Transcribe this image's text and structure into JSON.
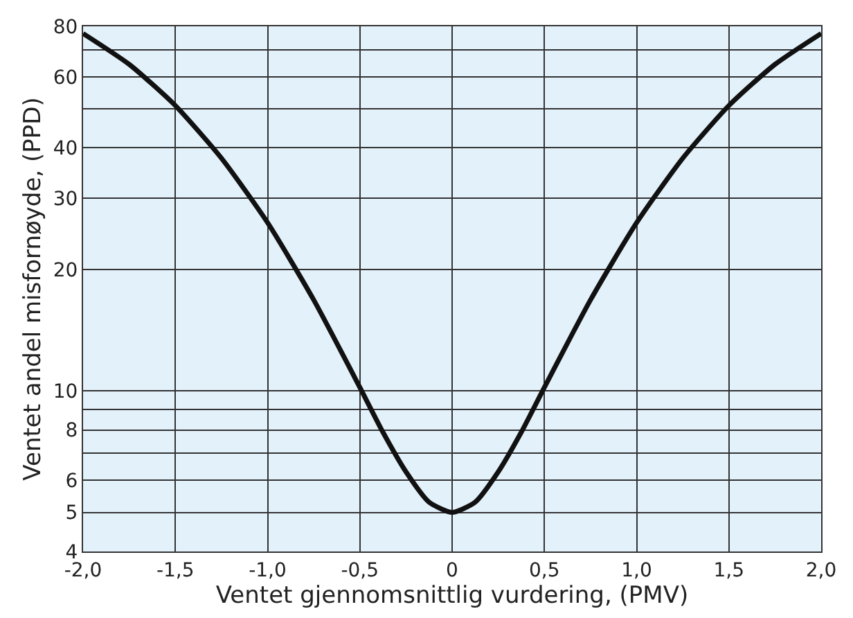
{
  "chart_data": {
    "type": "line",
    "xlabel": "Ventet gjennomsnittlig vurdering, (PMV)",
    "ylabel": "Ventet andel misfornøyde, (PPD)",
    "x": [
      -2.0,
      -1.75,
      -1.5,
      -1.25,
      -1.0,
      -0.75,
      -0.5,
      -0.375,
      -0.25,
      -0.125,
      0,
      0.125,
      0.25,
      0.375,
      0.5,
      0.75,
      1.0,
      1.25,
      1.5,
      1.75,
      2.0
    ],
    "series": [
      {
        "color": "#111111",
        "values": [
          76.8,
          64.4,
          50.9,
          37.7,
          26.1,
          16.8,
          10.2,
          7.9,
          6.3,
          5.3,
          5.0,
          5.3,
          6.3,
          7.9,
          10.2,
          16.8,
          26.1,
          37.7,
          50.9,
          64.4,
          76.8
        ]
      }
    ],
    "log": "y",
    "xlim": [
      -2.0,
      2.0
    ],
    "ylim": [
      4,
      80
    ],
    "xticks": [
      {
        "value": -2.0,
        "label": "-2,0"
      },
      {
        "value": -1.5,
        "label": "-1,5"
      },
      {
        "value": -1.0,
        "label": "-1,0"
      },
      {
        "value": -0.5,
        "label": "-0,5"
      },
      0,
      {
        "value": 0.5,
        "label": "0,5"
      },
      {
        "value": 1.0,
        "label": "1,0"
      },
      {
        "value": 1.5,
        "label": "1,5"
      },
      {
        "value": 2.0,
        "label": "2,0"
      }
    ],
    "yticks": [
      4,
      5,
      6,
      {
        "value": 7,
        "label": null
      },
      8,
      {
        "value": 9,
        "label": null
      },
      10,
      20,
      30,
      40,
      {
        "value": 50,
        "label": null
      },
      60,
      {
        "value": 70,
        "label": null
      },
      80
    ],
    "grid": true,
    "marker": "none",
    "line_style": "solid"
  }
}
